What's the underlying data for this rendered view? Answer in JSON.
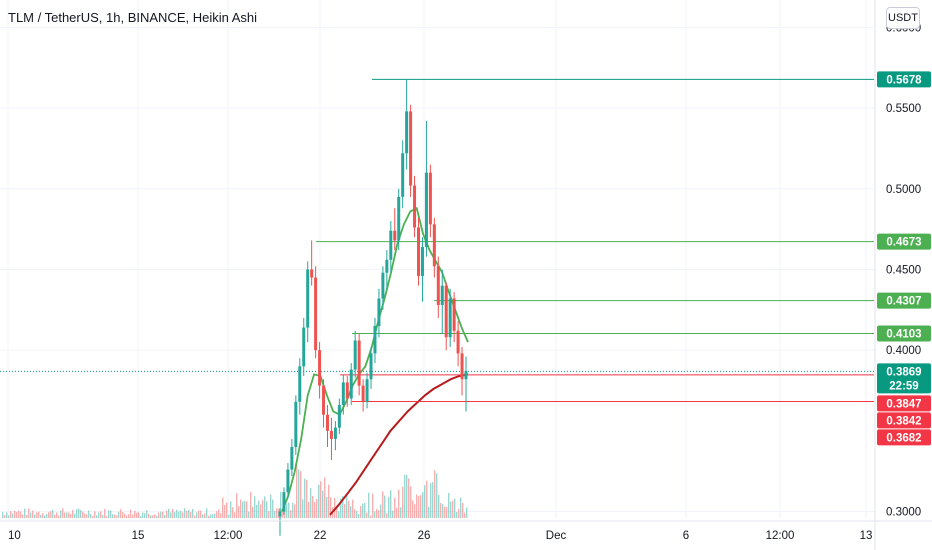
{
  "header": {
    "title": "TLM / TetherUS, 1h, BINANCE, Heikin Ashi",
    "currency": "USDT"
  },
  "chart_data": {
    "type": "candlestick",
    "x_tick_labels": [
      "10",
      "15",
      "12:00",
      "22",
      "26",
      "Dec",
      "6",
      "12:00",
      "13"
    ],
    "y_tick_labels": [
      "0.6000",
      "0.5500",
      "0.5000",
      "0.4500",
      "0.4000",
      "0.3000"
    ],
    "y_ticks": [
      0.6,
      0.55,
      0.5,
      0.45,
      0.4,
      0.3
    ],
    "y_range": [
      0.296,
      0.617
    ],
    "price_levels": [
      {
        "value": 0.5678,
        "label": "0.5678",
        "color": "#089981",
        "line": true
      },
      {
        "value": 0.4673,
        "label": "0.4673",
        "color": "#4caf50",
        "line": true
      },
      {
        "value": 0.4307,
        "label": "0.4307",
        "color": "#4caf50",
        "line": true
      },
      {
        "value": 0.4103,
        "label": "0.4103",
        "color": "#4caf50",
        "line": true
      },
      {
        "value": 0.3847,
        "label": "0.3847",
        "color": "#f23645",
        "line": true
      },
      {
        "value": 0.3842,
        "label": "0.3842",
        "color": "#f23645",
        "line": false
      },
      {
        "value": 0.3682,
        "label": "0.3682",
        "color": "#f23645",
        "line": true
      }
    ],
    "last_price": {
      "value": 0.3869,
      "label": "0.3869",
      "countdown": "22:59",
      "color": "#089981"
    },
    "candles_ohlc": [
      [
        0.297,
        0.302,
        0.285,
        0.3
      ],
      [
        0.3,
        0.315,
        0.298,
        0.312
      ],
      [
        0.312,
        0.33,
        0.308,
        0.326
      ],
      [
        0.326,
        0.345,
        0.322,
        0.34
      ],
      [
        0.34,
        0.372,
        0.335,
        0.368
      ],
      [
        0.368,
        0.395,
        0.36,
        0.39
      ],
      [
        0.39,
        0.42,
        0.384,
        0.414
      ],
      [
        0.414,
        0.455,
        0.405,
        0.45
      ],
      [
        0.45,
        0.468,
        0.44,
        0.445
      ],
      [
        0.445,
        0.452,
        0.395,
        0.4
      ],
      [
        0.4,
        0.405,
        0.37,
        0.378
      ],
      [
        0.378,
        0.382,
        0.352,
        0.36
      ],
      [
        0.36,
        0.366,
        0.34,
        0.35
      ],
      [
        0.35,
        0.358,
        0.332,
        0.345
      ],
      [
        0.345,
        0.356,
        0.338,
        0.352
      ],
      [
        0.352,
        0.37,
        0.348,
        0.366
      ],
      [
        0.366,
        0.385,
        0.36,
        0.38
      ],
      [
        0.38,
        0.384,
        0.365,
        0.37
      ],
      [
        0.37,
        0.392,
        0.366,
        0.388
      ],
      [
        0.388,
        0.412,
        0.383,
        0.406
      ],
      [
        0.406,
        0.41,
        0.372,
        0.378
      ],
      [
        0.378,
        0.382,
        0.362,
        0.368
      ],
      [
        0.368,
        0.386,
        0.364,
        0.382
      ],
      [
        0.382,
        0.402,
        0.376,
        0.398
      ],
      [
        0.398,
        0.42,
        0.392,
        0.415
      ],
      [
        0.415,
        0.438,
        0.408,
        0.432
      ],
      [
        0.432,
        0.452,
        0.425,
        0.448
      ],
      [
        0.448,
        0.462,
        0.438,
        0.456
      ],
      [
        0.456,
        0.48,
        0.448,
        0.474
      ],
      [
        0.474,
        0.488,
        0.462,
        0.468
      ],
      [
        0.468,
        0.5,
        0.462,
        0.495
      ],
      [
        0.495,
        0.53,
        0.488,
        0.522
      ],
      [
        0.522,
        0.568,
        0.512,
        0.548
      ],
      [
        0.548,
        0.552,
        0.495,
        0.502
      ],
      [
        0.502,
        0.508,
        0.47,
        0.476
      ],
      [
        0.476,
        0.482,
        0.44,
        0.446
      ],
      [
        0.446,
        0.47,
        0.43,
        0.464
      ],
      [
        0.464,
        0.542,
        0.458,
        0.51
      ],
      [
        0.51,
        0.515,
        0.47,
        0.478
      ],
      [
        0.478,
        0.482,
        0.445,
        0.452
      ],
      [
        0.452,
        0.458,
        0.42,
        0.428
      ],
      [
        0.428,
        0.45,
        0.41,
        0.44
      ],
      [
        0.44,
        0.442,
        0.4,
        0.408
      ],
      [
        0.408,
        0.438,
        0.402,
        0.432
      ],
      [
        0.432,
        0.436,
        0.405,
        0.412
      ],
      [
        0.412,
        0.418,
        0.39,
        0.398
      ],
      [
        0.398,
        0.402,
        0.372,
        0.382
      ],
      [
        0.382,
        0.396,
        0.362,
        0.387
      ]
    ],
    "ma_fast": [
      0.3,
      0.31,
      0.325,
      0.345,
      0.372,
      0.385,
      0.384,
      0.372,
      0.362,
      0.36,
      0.368,
      0.378,
      0.385,
      0.39,
      0.402,
      0.418,
      0.432,
      0.448,
      0.466,
      0.478,
      0.486,
      0.488,
      0.472,
      0.462,
      0.455,
      0.448,
      0.436,
      0.425,
      0.414,
      0.405
    ],
    "ma_slow": [
      0.298,
      0.304,
      0.311,
      0.318,
      0.326,
      0.334,
      0.342,
      0.35,
      0.356,
      0.362,
      0.367,
      0.372,
      0.376,
      0.379,
      0.382,
      0.384,
      0.385
    ],
    "grid": true
  }
}
